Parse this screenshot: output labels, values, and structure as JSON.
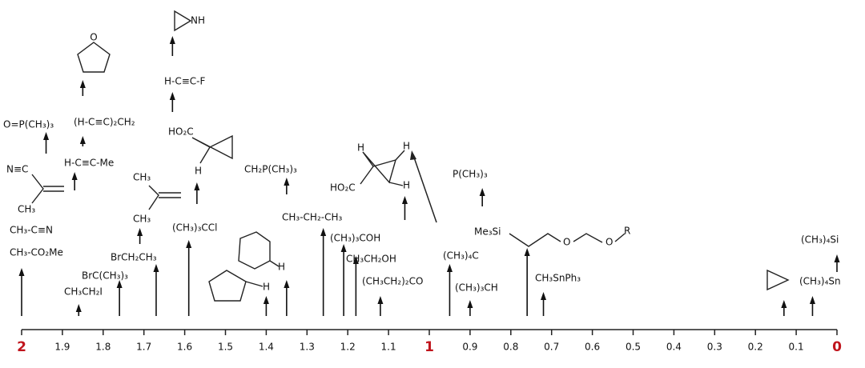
{
  "axis": {
    "ticks": [
      2,
      1.9,
      1.8,
      1.7,
      1.6,
      1.5,
      1.4,
      1.3,
      1.2,
      1.1,
      1,
      0.9,
      0.8,
      0.7,
      0.6,
      0.5,
      0.4,
      0.3,
      0.2,
      0.1,
      0
    ]
  },
  "compounds": [
    {
      "shift": 2.0,
      "texts": [
        "CH₃-CO₂Me"
      ]
    },
    {
      "texts": [
        "CH₃-C≡N"
      ]
    },
    {
      "texts": [
        "N≡C",
        "CH₃"
      ]
    },
    {
      "shift": 1.94,
      "texts": [
        "O=P(CH₃)₃"
      ]
    },
    {
      "shift": 1.87,
      "texts": [
        "H-C≡C-Me"
      ]
    },
    {
      "shift": 1.86,
      "texts": [
        "CH₃CH₂I"
      ]
    },
    {
      "shift": 1.85,
      "texts": [
        "(H-C≡C)₂CH₂"
      ]
    },
    {
      "shift": 1.85,
      "texts": [
        "O"
      ]
    },
    {
      "shift": 1.76,
      "texts": [
        "BrC(CH₃)₃"
      ]
    },
    {
      "shift": 1.71,
      "texts": [
        "CH₃",
        "CH₃"
      ]
    },
    {
      "shift": 1.67,
      "texts": [
        "BrCH₂CH₃"
      ]
    },
    {
      "shift": 1.63,
      "texts": [
        "H-C≡C-F"
      ]
    },
    {
      "shift": 1.63,
      "texts": [
        "NH"
      ]
    },
    {
      "shift": 1.59,
      "texts": [
        "(CH₃)₃CCl"
      ]
    },
    {
      "shift": 1.57,
      "texts": [
        "HO₂C",
        "H"
      ]
    },
    {
      "shift": 1.35,
      "texts": [
        "CH₂P(CH₃)₃"
      ]
    },
    {
      "shift": 1.35,
      "texts": [
        "H"
      ]
    },
    {
      "shift": 1.4,
      "texts": [
        "H"
      ]
    },
    {
      "shift": 1.26,
      "texts": [
        "CH₃-CH₂-CH₃"
      ]
    },
    {
      "shift": 1.21,
      "texts": [
        "(CH₃)₃COH"
      ]
    },
    {
      "shift": 1.18,
      "texts": [
        "CH₃CH₂OH"
      ]
    },
    {
      "shift": 1.12,
      "texts": [
        "(CH₃CH₂)₂CO"
      ]
    },
    {
      "shift": 1.06,
      "texts": [
        "H",
        "H",
        "HO₂C",
        "H"
      ]
    },
    {
      "shift": 0.87,
      "texts": [
        "P(CH₃)₃"
      ]
    },
    {
      "shift": 0.95,
      "texts": [
        "(CH₃)₄C"
      ]
    },
    {
      "shift": 0.9,
      "texts": [
        "(CH₃)₃CH"
      ]
    },
    {
      "shift": 0.76,
      "texts": [
        "Me₃Si",
        "O",
        "O",
        "R"
      ]
    },
    {
      "shift": 0.72,
      "texts": [
        "CH₃SnPh₃"
      ]
    },
    {
      "shift": 0.13
    },
    {
      "shift": 0.06,
      "texts": [
        "(CH₃)₄Sn"
      ]
    },
    {
      "shift": 0.0,
      "texts": [
        "(CH₃)₄Si"
      ]
    }
  ]
}
